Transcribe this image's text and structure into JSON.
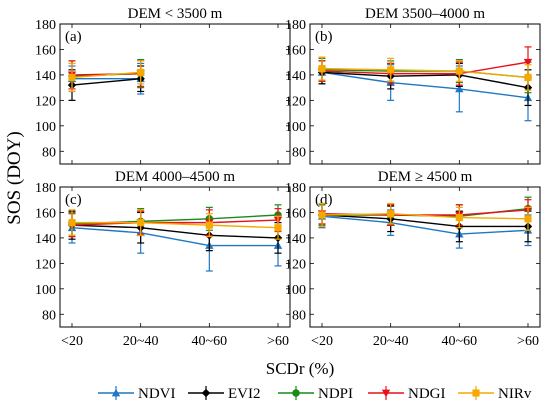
{
  "figure": {
    "ylabel": "SOS (DOY)",
    "xlabel": "SCDr (%)"
  },
  "legend": [
    {
      "name": "NDVI",
      "color": "#1f77c4",
      "marker": "triangle"
    },
    {
      "name": "EVI2",
      "color": "#000000",
      "marker": "diamond"
    },
    {
      "name": "NDPI",
      "color": "#1a8a1a",
      "marker": "circle"
    },
    {
      "name": "NDGI",
      "color": "#e8101a",
      "marker": "triangle-down"
    },
    {
      "name": "NIRv",
      "color": "#f5a800",
      "marker": "square"
    }
  ],
  "chart_data": [
    {
      "type": "line",
      "panel": "(a)",
      "title": "DEM < 3500 m",
      "categories": [
        "<20",
        "20~40",
        "40~60",
        ">60"
      ],
      "ylim": [
        70,
        180
      ],
      "yticks": [
        80,
        100,
        120,
        140,
        160,
        180
      ],
      "series": [
        {
          "name": "NDVI",
          "values": [
            137,
            137,
            null,
            null
          ],
          "err": [
            10,
            12,
            null,
            null
          ]
        },
        {
          "name": "EVI2",
          "values": [
            132,
            137,
            null,
            null
          ],
          "err": [
            12,
            10,
            null,
            null
          ]
        },
        {
          "name": "NDPI",
          "values": [
            139,
            141,
            null,
            null
          ],
          "err": [
            12,
            11,
            null,
            null
          ]
        },
        {
          "name": "NDGI",
          "values": [
            140,
            141,
            null,
            null
          ],
          "err": [
            11,
            10,
            null,
            null
          ]
        },
        {
          "name": "NIRv",
          "values": [
            138,
            142,
            null,
            null
          ],
          "err": [
            11,
            9,
            null,
            null
          ]
        }
      ]
    },
    {
      "type": "line",
      "panel": "(b)",
      "title": "DEM 3500–4000 m",
      "categories": [
        "<20",
        "20~40",
        "40~60",
        ">60"
      ],
      "ylim": [
        70,
        180
      ],
      "yticks": [
        80,
        100,
        120,
        140,
        160,
        180
      ],
      "series": [
        {
          "name": "NDVI",
          "values": [
            142,
            134,
            129,
            122
          ],
          "err": [
            9,
            14,
            18,
            18
          ]
        },
        {
          "name": "EVI2",
          "values": [
            142,
            139,
            140,
            130
          ],
          "err": [
            9,
            10,
            9,
            14
          ]
        },
        {
          "name": "NDPI",
          "values": [
            144,
            143,
            143,
            138
          ],
          "err": [
            9,
            8,
            9,
            12
          ]
        },
        {
          "name": "NDGI",
          "values": [
            143,
            141,
            141,
            150
          ],
          "err": [
            8,
            8,
            9,
            12
          ]
        },
        {
          "name": "NIRv",
          "values": [
            145,
            144,
            143,
            138
          ],
          "err": [
            9,
            9,
            8,
            10
          ]
        }
      ]
    },
    {
      "type": "line",
      "panel": "(c)",
      "title": "DEM 4000–4500 m",
      "categories": [
        "<20",
        "20~40",
        "40~60",
        ">60"
      ],
      "ylim": [
        70,
        180
      ],
      "yticks": [
        80,
        100,
        120,
        140,
        160,
        180
      ],
      "series": [
        {
          "name": "NDVI",
          "values": [
            148,
            144,
            134,
            134
          ],
          "err": [
            12,
            16,
            20,
            16
          ]
        },
        {
          "name": "EVI2",
          "values": [
            150,
            148,
            142,
            140
          ],
          "err": [
            11,
            12,
            12,
            12
          ]
        },
        {
          "name": "NDPI",
          "values": [
            151,
            153,
            155,
            158
          ],
          "err": [
            9,
            10,
            9,
            8
          ]
        },
        {
          "name": "NDGI",
          "values": [
            150,
            152,
            152,
            154
          ],
          "err": [
            9,
            9,
            10,
            9
          ]
        },
        {
          "name": "NIRv",
          "values": [
            152,
            152,
            150,
            148
          ],
          "err": [
            10,
            10,
            9,
            9
          ]
        }
      ]
    },
    {
      "type": "line",
      "panel": "(d)",
      "title": "DEM ≥ 4500 m",
      "categories": [
        "<20",
        "20~40",
        "40~60",
        ">60"
      ],
      "ylim": [
        70,
        180
      ],
      "yticks": [
        80,
        100,
        120,
        140,
        160,
        180
      ],
      "series": [
        {
          "name": "NDVI",
          "values": [
            157,
            152,
            143,
            146
          ],
          "err": [
            9,
            10,
            11,
            12
          ]
        },
        {
          "name": "EVI2",
          "values": [
            158,
            155,
            149,
            149
          ],
          "err": [
            9,
            10,
            12,
            12
          ]
        },
        {
          "name": "NDPI",
          "values": [
            158,
            158,
            157,
            163
          ],
          "err": [
            8,
            8,
            9,
            9
          ]
        },
        {
          "name": "NDGI",
          "values": [
            159,
            158,
            158,
            162
          ],
          "err": [
            8,
            8,
            8,
            8
          ]
        },
        {
          "name": "NIRv",
          "values": [
            158,
            159,
            156,
            155
          ],
          "err": [
            9,
            8,
            8,
            9
          ]
        }
      ]
    }
  ]
}
